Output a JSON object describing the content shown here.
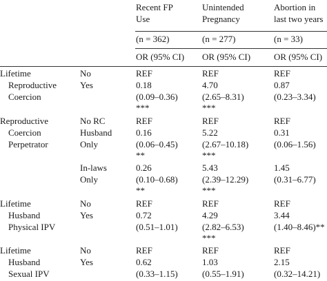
{
  "header": {
    "col1": {
      "line1": "Recent FP",
      "line2": "Use",
      "n": "(n = 362)",
      "stat": "OR (95% CI)"
    },
    "col2": {
      "line1": "Unintended",
      "line2": "Pregnancy",
      "n": "(n = 277)",
      "stat": "OR (95% CI)"
    },
    "col3": {
      "line1": "Abortion in",
      "line2": "last two years",
      "n": "(n = 33)",
      "stat": "OR (95% CI)"
    }
  },
  "sections": [
    {
      "label": [
        "Lifetime",
        "Reproductive",
        "Coercion"
      ],
      "rows": [
        {
          "level": [
            "No"
          ],
          "c1": [
            "REF"
          ],
          "c2": [
            "REF"
          ],
          "c3": [
            "REF"
          ]
        },
        {
          "level": [
            "Yes"
          ],
          "c1": [
            "0.18",
            "(0.09–0.36)",
            "***"
          ],
          "c2": [
            "4.70",
            "(2.65–8.31)",
            "***"
          ],
          "c3": [
            "0.87",
            "(0.23–3.34)"
          ]
        }
      ]
    },
    {
      "label": [
        "Reproductive",
        "Coercion",
        "Perpetrator"
      ],
      "rows": [
        {
          "level": [
            "No RC"
          ],
          "c1": [
            "REF"
          ],
          "c2": [
            "REF"
          ],
          "c3": [
            "REF"
          ]
        },
        {
          "level": [
            "Husband",
            "Only"
          ],
          "c1": [
            "0.16",
            "(0.06–0.45)",
            "**"
          ],
          "c2": [
            "5.22",
            "(2.67–10.18)",
            "***"
          ],
          "c3": [
            "0.31",
            "(0.06–1.56)"
          ]
        },
        {
          "level": [
            "In-laws",
            "Only"
          ],
          "c1": [
            "0.26",
            "(0.10–0.68)",
            "**"
          ],
          "c2": [
            "5.43",
            "(2.39–12.29)",
            "***"
          ],
          "c3": [
            "1.45",
            "(0.31–6.77)"
          ]
        }
      ]
    },
    {
      "label": [
        "Lifetime",
        "Husband",
        "Physical IPV"
      ],
      "rows": [
        {
          "level": [
            "No"
          ],
          "c1": [
            "REF"
          ],
          "c2": [
            "REF"
          ],
          "c3": [
            "REF"
          ]
        },
        {
          "level": [
            "Yes"
          ],
          "c1": [
            "0.72",
            "(0.51–1.01)"
          ],
          "c2": [
            "4.29",
            "(2.82–6.53)",
            "***"
          ],
          "c3": [
            "3.44",
            "(1.40–8.46)**"
          ]
        }
      ]
    },
    {
      "label": [
        "Lifetime",
        "Husband",
        "Sexual IPV"
      ],
      "rows": [
        {
          "level": [
            "No"
          ],
          "c1": [
            "REF"
          ],
          "c2": [
            "REF"
          ],
          "c3": [
            "REF"
          ]
        },
        {
          "level": [
            "Yes"
          ],
          "c1": [
            "0.62",
            "(0.33–1.15)"
          ],
          "c2": [
            "1.03",
            "(0.55–1.91)"
          ],
          "c3": [
            "2.15",
            "(0.32–14.21)"
          ]
        }
      ]
    }
  ]
}
